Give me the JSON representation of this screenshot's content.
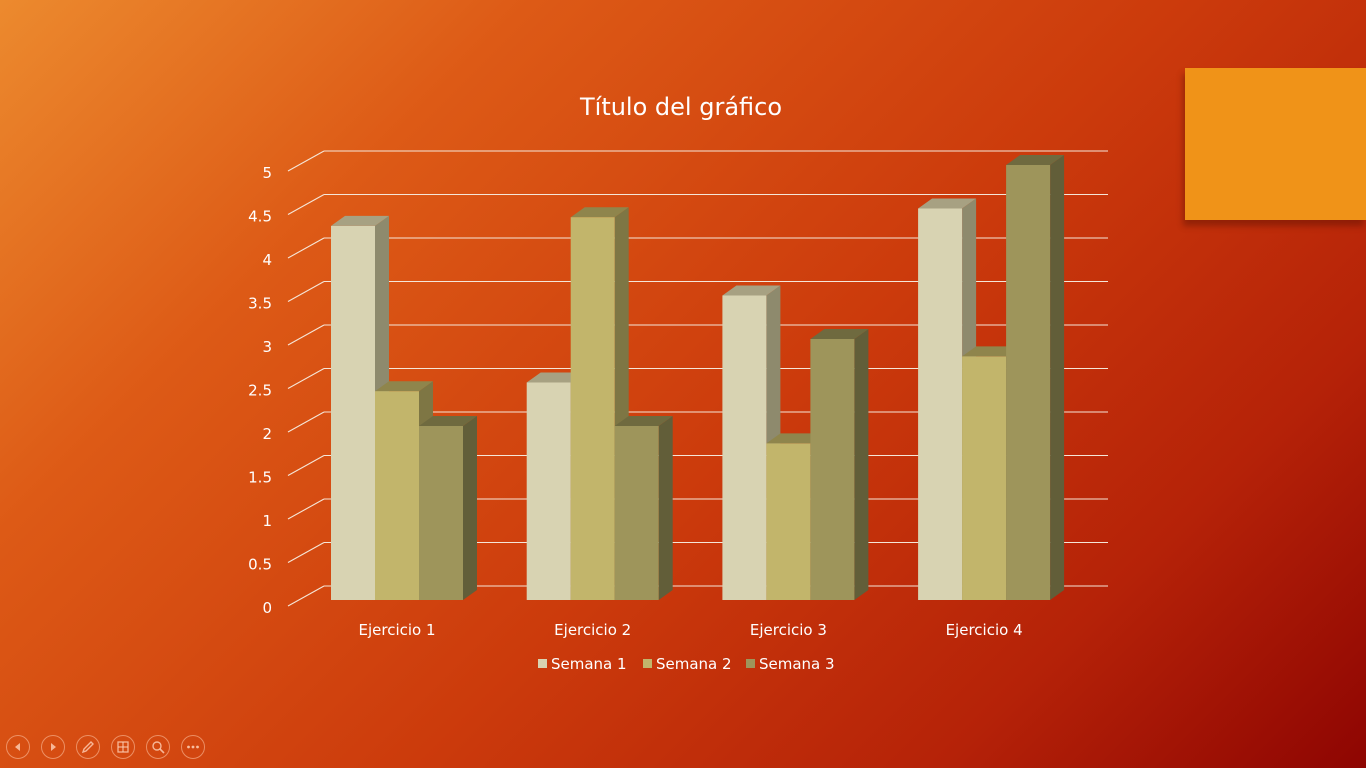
{
  "colors": {
    "accent_block": "#f09318",
    "gridline": "#f5e6d8",
    "label_text": "#ffffff",
    "series": [
      {
        "front": "#d8d3b2",
        "top": "#a7a182",
        "side": "#8e8a6d"
      },
      {
        "front": "#c2b56b",
        "top": "#8f854c",
        "side": "#7e7644"
      },
      {
        "front": "#9e955b",
        "top": "#6f6a3f",
        "side": "#625e39"
      }
    ]
  },
  "icons": [
    "previous-slide-icon",
    "next-slide-icon",
    "pen-icon",
    "slides-grid-icon",
    "zoom-icon",
    "more-options-icon"
  ],
  "chart_data": {
    "type": "bar",
    "style": "3d-clustered-column",
    "title": "Título del gráfico",
    "categories": [
      "Ejercicio 1",
      "Ejercicio 2",
      "Ejercicio 3",
      "Ejercicio 4"
    ],
    "series": [
      {
        "name": "Semana 1",
        "values": [
          4.3,
          2.5,
          3.5,
          4.5
        ]
      },
      {
        "name": "Semana 2",
        "values": [
          2.4,
          4.4,
          1.8,
          2.8
        ]
      },
      {
        "name": "Semana 3",
        "values": [
          2,
          2,
          3,
          5
        ]
      }
    ],
    "ylim": [
      0,
      5
    ],
    "yticks": [
      "0",
      "0.5",
      "1",
      "1.5",
      "2",
      "2.5",
      "3",
      "3.5",
      "4",
      "4.5",
      "5"
    ],
    "grid": true,
    "legend_position": "bottom"
  }
}
